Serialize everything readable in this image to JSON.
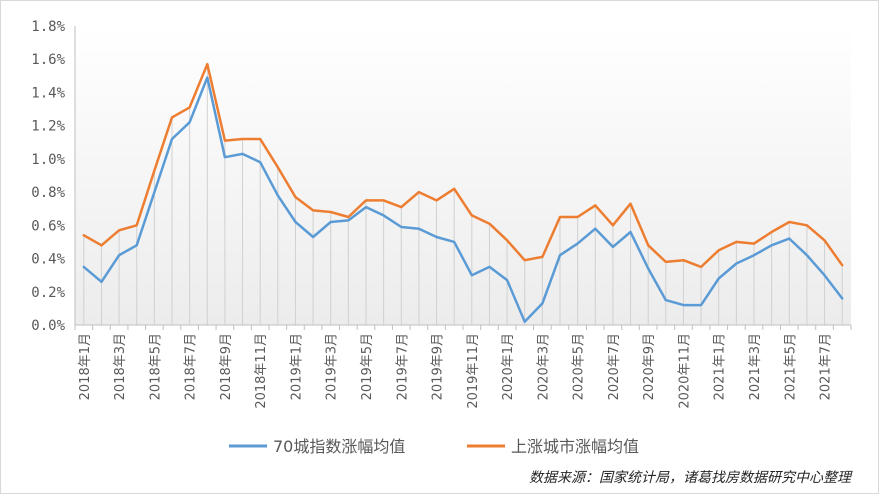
{
  "chart_data": {
    "type": "line",
    "x": [
      "2018年1月",
      "2018年2月",
      "2018年3月",
      "2018年4月",
      "2018年5月",
      "2018年6月",
      "2018年7月",
      "2018年8月",
      "2018年9月",
      "2018年10月",
      "2018年11月",
      "2018年12月",
      "2019年1月",
      "2019年2月",
      "2019年3月",
      "2019年4月",
      "2019年5月",
      "2019年6月",
      "2019年7月",
      "2019年8月",
      "2019年9月",
      "2019年10月",
      "2019年11月",
      "2019年12月",
      "2020年1月",
      "2020年2月",
      "2020年3月",
      "2020年4月",
      "2020年5月",
      "2020年6月",
      "2020年7月",
      "2020年8月",
      "2020年9月",
      "2020年10月",
      "2020年11月",
      "2020年12月",
      "2021年1月",
      "2021年2月",
      "2021年3月",
      "2021年4月",
      "2021年5月",
      "2021年6月",
      "2021年7月",
      "2021年8月"
    ],
    "xtick_labels": [
      "2018年1月",
      "2018年3月",
      "2018年5月",
      "2018年7月",
      "2018年9月",
      "2018年11月",
      "2019年1月",
      "2019年3月",
      "2019年5月",
      "2019年7月",
      "2019年9月",
      "2019年11月",
      "2020年1月",
      "2020年3月",
      "2020年5月",
      "2020年7月",
      "2020年9月",
      "2020年11月",
      "2021年1月",
      "2021年3月",
      "2021年5月",
      "2021年7月"
    ],
    "series": [
      {
        "name": "70城指数涨幅均值",
        "color": "#5b9bd5",
        "values": [
          0.35,
          0.26,
          0.42,
          0.48,
          0.8,
          1.12,
          1.22,
          1.49,
          1.01,
          1.03,
          0.98,
          0.78,
          0.62,
          0.53,
          0.62,
          0.63,
          0.71,
          0.66,
          0.59,
          0.58,
          0.53,
          0.5,
          0.3,
          0.35,
          0.27,
          0.02,
          0.13,
          0.42,
          0.49,
          0.58,
          0.47,
          0.56,
          0.34,
          0.15,
          0.12,
          0.12,
          0.28,
          0.37,
          0.42,
          0.48,
          0.52,
          0.42,
          0.3,
          0.16
        ]
      },
      {
        "name": "上涨城市涨幅均值",
        "color": "#ed7d31",
        "values": [
          0.54,
          0.48,
          0.57,
          0.6,
          0.93,
          1.25,
          1.31,
          1.57,
          1.11,
          1.12,
          1.12,
          0.95,
          0.77,
          0.69,
          0.68,
          0.65,
          0.75,
          0.75,
          0.71,
          0.8,
          0.75,
          0.82,
          0.66,
          0.61,
          0.51,
          0.39,
          0.41,
          0.65,
          0.65,
          0.72,
          0.6,
          0.73,
          0.48,
          0.38,
          0.39,
          0.35,
          0.45,
          0.5,
          0.49,
          0.56,
          0.62,
          0.6,
          0.51,
          0.36
        ]
      }
    ],
    "ylim": [
      0,
      1.8
    ],
    "yticks": [
      "0.0%",
      "0.2%",
      "0.4%",
      "0.6%",
      "0.8%",
      "1.0%",
      "1.2%",
      "1.4%",
      "1.6%",
      "1.8%"
    ],
    "grid": false,
    "legend": "bottom",
    "source_note": "数据来源：国家统计局，诸葛找房数据研究中心整理"
  }
}
